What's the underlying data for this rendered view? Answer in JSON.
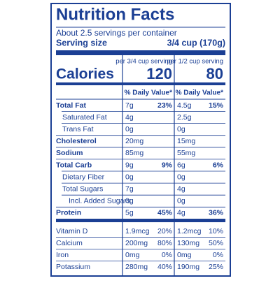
{
  "header": {
    "title": "Nutrition Facts",
    "servings": "About 2.5 servings per container",
    "serving_size_label": "Serving size",
    "serving_size": "3/4 cup (170g)"
  },
  "calories": {
    "label": "Calories",
    "columns": [
      {
        "serving": "per 3/4 cup serving",
        "calories": 120
      },
      {
        "serving": "per 1/2 cup serving",
        "calories": 80
      }
    ]
  },
  "daily_value_header": "% Daily Value*",
  "nutrients": [
    {
      "name": "Total Fat",
      "level": 0,
      "values": [
        {
          "amount": "7g",
          "dv": "23%"
        },
        {
          "amount": "4.5g",
          "dv": "15%"
        }
      ]
    },
    {
      "name": "Saturated Fat",
      "level": 1,
      "values": [
        {
          "amount": "4g"
        },
        {
          "amount": "2.5g"
        }
      ]
    },
    {
      "name": "Trans Fat",
      "level": 1,
      "values": [
        {
          "amount": "0g"
        },
        {
          "amount": "0g"
        }
      ]
    },
    {
      "name": "Cholesterol",
      "level": 0,
      "values": [
        {
          "amount": "20mg"
        },
        {
          "amount": "15mg"
        }
      ]
    },
    {
      "name": "Sodium",
      "level": 0,
      "values": [
        {
          "amount": "85mg"
        },
        {
          "amount": "55mg"
        }
      ]
    },
    {
      "name": "Total Carb",
      "level": 0,
      "values": [
        {
          "amount": "9g",
          "dv": "9%"
        },
        {
          "amount": "6g",
          "dv": "6%"
        }
      ]
    },
    {
      "name": "Dietary Fiber",
      "level": 1,
      "values": [
        {
          "amount": "0g"
        },
        {
          "amount": "0g"
        }
      ]
    },
    {
      "name": "Total Sugars",
      "level": 1,
      "values": [
        {
          "amount": "7g"
        },
        {
          "amount": "4g"
        }
      ]
    },
    {
      "name": "Incl. Added Sugars",
      "level": 2,
      "values": [
        {
          "amount": "0g"
        },
        {
          "amount": "0g"
        }
      ]
    },
    {
      "name": "Protein",
      "level": 0,
      "values": [
        {
          "amount": "5g",
          "dv": "45%"
        },
        {
          "amount": "4g",
          "dv": "36%"
        }
      ]
    }
  ],
  "vitamins": [
    {
      "name": "Vitamin D",
      "values": [
        {
          "amount": "1.9mcg",
          "dv": "20%"
        },
        {
          "amount": "1.2mcg",
          "dv": "10%"
        }
      ]
    },
    {
      "name": "Calcium",
      "values": [
        {
          "amount": "200mg",
          "dv": "80%"
        },
        {
          "amount": "130mg",
          "dv": "50%"
        }
      ]
    },
    {
      "name": "Iron",
      "values": [
        {
          "amount": "0mg",
          "dv": "0%"
        },
        {
          "amount": "0mg",
          "dv": "0%"
        }
      ]
    },
    {
      "name": "Potassium",
      "values": [
        {
          "amount": "280mg",
          "dv": "40%"
        },
        {
          "amount": "190mg",
          "dv": "25%"
        }
      ]
    }
  ]
}
